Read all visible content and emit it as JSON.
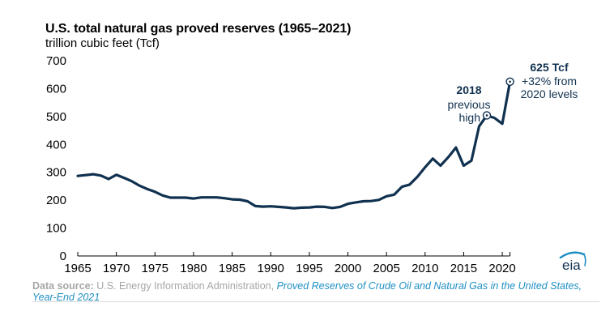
{
  "header": {
    "title": "U.S. total natural gas proved reserves (1965–2021)",
    "subtitle": "trillion cubic feet (Tcf)"
  },
  "annotations": {
    "prev_high": {
      "year": "2018",
      "line1": "previous",
      "line2": "high"
    },
    "latest": {
      "line1": "625 Tcf",
      "line2": "+32% from",
      "line3": "2020 levels"
    }
  },
  "source": {
    "label": "Data source:",
    "org": "U.S. Energy Information Administration,",
    "publication": "Proved Reserves of Crude Oil and Natural Gas in the United States, Year-End 2021"
  },
  "logo": {
    "text": "eia"
  },
  "colors": {
    "line": "#10314f",
    "source_link": "#1f8fc3",
    "source_text": "#a6a6a6"
  },
  "chart_data": {
    "type": "line",
    "title": "U.S. total natural gas proved reserves (1965–2021)",
    "ylabel": "trillion cubic feet (Tcf)",
    "xlabel": "",
    "xlim": [
      1965,
      2021
    ],
    "ylim": [
      0,
      700
    ],
    "yticks": [
      0,
      100,
      200,
      300,
      400,
      500,
      600,
      700
    ],
    "xticks": [
      1965,
      1970,
      1975,
      1980,
      1985,
      1990,
      1995,
      2000,
      2005,
      2010,
      2015,
      2020
    ],
    "grid": false,
    "series": [
      {
        "name": "Total natural gas proved reserves",
        "x": [
          1965,
          1966,
          1967,
          1968,
          1969,
          1970,
          1971,
          1972,
          1973,
          1974,
          1975,
          1976,
          1977,
          1978,
          1979,
          1980,
          1981,
          1982,
          1983,
          1984,
          1985,
          1986,
          1987,
          1988,
          1989,
          1990,
          1991,
          1992,
          1993,
          1994,
          1995,
          1996,
          1997,
          1998,
          1999,
          2000,
          2001,
          2002,
          2003,
          2004,
          2005,
          2006,
          2007,
          2008,
          2009,
          2010,
          2011,
          2012,
          2013,
          2014,
          2015,
          2016,
          2017,
          2018,
          2019,
          2020,
          2021
        ],
        "values": [
          287,
          290,
          293,
          288,
          276,
          291,
          280,
          268,
          252,
          240,
          230,
          217,
          209,
          209,
          209,
          206,
          210,
          210,
          210,
          207,
          203,
          202,
          196,
          179,
          177,
          178,
          176,
          174,
          171,
          173,
          174,
          177,
          176,
          172,
          176,
          187,
          192,
          196,
          197,
          201,
          214,
          220,
          248,
          256,
          284,
          318,
          349,
          324,
          354,
          389,
          324,
          342,
          465,
          504,
          495,
          474,
          625
        ]
      }
    ],
    "highlighted_points": [
      {
        "year": 2018,
        "value": 504,
        "label": "2018 previous high"
      },
      {
        "year": 2021,
        "value": 625,
        "label": "625 Tcf +32% from 2020 levels"
      }
    ]
  }
}
